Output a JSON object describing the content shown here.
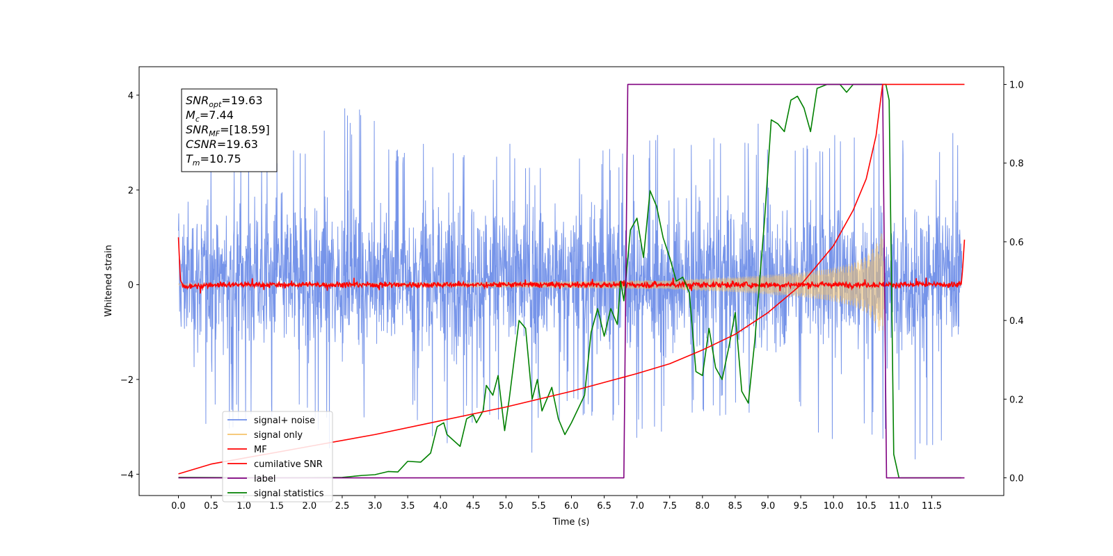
{
  "chart_data": {
    "type": "line",
    "xlabel": "Time (s)",
    "ylabel": "Whitened strain",
    "xlim": [
      -0.6,
      12.6
    ],
    "ylim_left": [
      -4.45,
      4.6
    ],
    "ylim_right": [
      -0.045,
      1.045
    ],
    "x_ticks": [
      0.0,
      0.5,
      1.0,
      1.5,
      2.0,
      2.5,
      3.0,
      3.5,
      4.0,
      4.5,
      5.0,
      5.5,
      6.0,
      6.5,
      7.0,
      7.5,
      8.0,
      8.5,
      9.0,
      9.5,
      10.0,
      10.5,
      11.0,
      11.5
    ],
    "x_tick_labels": [
      "0.0",
      "0.5",
      "1.0",
      "1.5",
      "2.0",
      "2.5",
      "3.0",
      "3.5",
      "4.0",
      "4.5",
      "5.0",
      "5.5",
      "6.0",
      "6.5",
      "7.0",
      "7.5",
      "8.0",
      "8.5",
      "9.0",
      "9.5",
      "10.0",
      "10.5",
      "11.0",
      "11.5"
    ],
    "y_left_ticks": [
      -4,
      -2,
      0,
      2,
      4
    ],
    "y_left_tick_labels": [
      "−4",
      "−2",
      "0",
      "2",
      "4"
    ],
    "y_right_ticks": [
      0.0,
      0.2,
      0.4,
      0.6,
      0.8,
      1.0
    ],
    "y_right_tick_labels": [
      "0.0",
      "0.2",
      "0.4",
      "0.6",
      "0.8",
      "1.0"
    ],
    "grid": false,
    "legend_position": "lower-left",
    "annotation": [
      {
        "base": "SNR",
        "sub": "opt",
        "value": "=19.63"
      },
      {
        "base": "M",
        "sub": "c",
        "value": "=7.44"
      },
      {
        "base": "SNR",
        "sub": "MF",
        "value": "=[18.59]"
      },
      {
        "base": "CSNR",
        "sub": "",
        "value": "=19.63"
      },
      {
        "base": "T",
        "sub": "m",
        "value": "=10.75"
      }
    ],
    "series": [
      {
        "name": "signal+ noise",
        "axis": "left",
        "color": "#6f8ee8",
        "envelope_upper": [
          [
            0.0,
            2.3
          ],
          [
            0.3,
            2.6
          ],
          [
            0.7,
            3.2
          ],
          [
            1.2,
            2.9
          ],
          [
            1.7,
            3.1
          ],
          [
            2.2,
            3.3
          ],
          [
            2.8,
            4.15
          ],
          [
            3.3,
            2.9
          ],
          [
            3.9,
            3.1
          ],
          [
            4.4,
            2.8
          ],
          [
            5.0,
            3.0
          ],
          [
            5.6,
            2.8
          ],
          [
            6.2,
            3.1
          ],
          [
            6.8,
            2.9
          ],
          [
            7.3,
            3.2
          ],
          [
            7.8,
            3.0
          ],
          [
            8.2,
            3.2
          ],
          [
            8.7,
            3.5
          ],
          [
            9.3,
            3.1
          ],
          [
            9.8,
            3.2
          ],
          [
            10.3,
            3.3
          ],
          [
            10.6,
            3.6
          ],
          [
            10.9,
            3.2
          ],
          [
            11.4,
            2.9
          ],
          [
            11.95,
            3.3
          ]
        ],
        "envelope_lower": [
          [
            0.0,
            -2.1
          ],
          [
            0.3,
            -3.0
          ],
          [
            0.7,
            -3.1
          ],
          [
            1.2,
            -2.8
          ],
          [
            1.7,
            -3.1
          ],
          [
            2.2,
            -3.3
          ],
          [
            2.6,
            -3.9
          ],
          [
            3.0,
            -2.9
          ],
          [
            3.6,
            -2.8
          ],
          [
            4.0,
            -3.9
          ],
          [
            4.5,
            -2.9
          ],
          [
            5.0,
            -3.0
          ],
          [
            5.4,
            -3.6
          ],
          [
            6.0,
            -2.9
          ],
          [
            6.6,
            -3.1
          ],
          [
            7.1,
            -3.4
          ],
          [
            7.6,
            -3.0
          ],
          [
            8.1,
            -2.8
          ],
          [
            8.6,
            -3.0
          ],
          [
            9.1,
            -2.9
          ],
          [
            9.5,
            -2.8
          ],
          [
            9.9,
            -3.9
          ],
          [
            10.4,
            -3.0
          ],
          [
            10.9,
            -3.5
          ],
          [
            11.4,
            -3.8
          ],
          [
            11.95,
            -3.0
          ]
        ]
      },
      {
        "name": "signal only",
        "axis": "left",
        "color": "#f5c26a",
        "envelope": [
          [
            0.0,
            0.02
          ],
          [
            3.0,
            0.03
          ],
          [
            6.0,
            0.07
          ],
          [
            7.5,
            0.1
          ],
          [
            8.5,
            0.16
          ],
          [
            9.5,
            0.26
          ],
          [
            10.0,
            0.36
          ],
          [
            10.3,
            0.46
          ],
          [
            10.5,
            0.6
          ],
          [
            10.65,
            0.85
          ],
          [
            10.75,
            1.15
          ],
          [
            10.78,
            0.0
          ]
        ]
      },
      {
        "name": "MF",
        "axis": "left",
        "color": "#ff0000",
        "points": [
          [
            0.0,
            1.0
          ],
          [
            0.03,
            0.1
          ],
          [
            0.08,
            -0.05
          ],
          [
            0.5,
            0.0
          ],
          [
            11.95,
            0.0
          ],
          [
            11.97,
            0.3
          ],
          [
            12.0,
            0.95
          ]
        ],
        "noise_amplitude": 0.06
      },
      {
        "name": "cumilative SNR",
        "axis": "right",
        "color": "#ff0000",
        "points": [
          [
            0.0,
            0.01
          ],
          [
            0.5,
            0.035
          ],
          [
            1.0,
            0.05
          ],
          [
            2.0,
            0.08
          ],
          [
            3.0,
            0.11
          ],
          [
            4.0,
            0.145
          ],
          [
            5.0,
            0.18
          ],
          [
            6.0,
            0.22
          ],
          [
            7.0,
            0.265
          ],
          [
            7.5,
            0.29
          ],
          [
            8.0,
            0.325
          ],
          [
            8.5,
            0.365
          ],
          [
            9.0,
            0.42
          ],
          [
            9.5,
            0.49
          ],
          [
            10.0,
            0.59
          ],
          [
            10.3,
            0.68
          ],
          [
            10.5,
            0.76
          ],
          [
            10.65,
            0.87
          ],
          [
            10.75,
            1.0
          ],
          [
            12.0,
            1.0
          ]
        ]
      },
      {
        "name": "label",
        "axis": "right",
        "color": "#800080",
        "points": [
          [
            0.0,
            0.0
          ],
          [
            6.8,
            0.0
          ],
          [
            6.86,
            1.0
          ],
          [
            10.75,
            1.0
          ],
          [
            10.81,
            0.0
          ],
          [
            12.0,
            0.0
          ]
        ]
      },
      {
        "name": "signal statistics",
        "axis": "right",
        "color": "#008000",
        "points": [
          [
            0.0,
            0.001
          ],
          [
            1.5,
            0.0
          ],
          [
            2.5,
            0.001
          ],
          [
            2.8,
            0.006
          ],
          [
            3.0,
            0.008
          ],
          [
            3.2,
            0.016
          ],
          [
            3.35,
            0.015
          ],
          [
            3.5,
            0.042
          ],
          [
            3.7,
            0.04
          ],
          [
            3.85,
            0.063
          ],
          [
            3.95,
            0.13
          ],
          [
            4.05,
            0.14
          ],
          [
            4.1,
            0.11
          ],
          [
            4.3,
            0.08
          ],
          [
            4.4,
            0.15
          ],
          [
            4.5,
            0.16
          ],
          [
            4.55,
            0.14
          ],
          [
            4.65,
            0.17
          ],
          [
            4.7,
            0.235
          ],
          [
            4.8,
            0.21
          ],
          [
            4.88,
            0.26
          ],
          [
            4.98,
            0.12
          ],
          [
            5.05,
            0.2
          ],
          [
            5.2,
            0.4
          ],
          [
            5.3,
            0.38
          ],
          [
            5.4,
            0.2
          ],
          [
            5.48,
            0.25
          ],
          [
            5.55,
            0.17
          ],
          [
            5.7,
            0.23
          ],
          [
            5.8,
            0.15
          ],
          [
            5.9,
            0.11
          ],
          [
            6.0,
            0.14
          ],
          [
            6.2,
            0.21
          ],
          [
            6.3,
            0.37
          ],
          [
            6.4,
            0.43
          ],
          [
            6.5,
            0.36
          ],
          [
            6.6,
            0.43
          ],
          [
            6.7,
            0.39
          ],
          [
            6.75,
            0.5
          ],
          [
            6.8,
            0.45
          ],
          [
            6.9,
            0.63
          ],
          [
            7.0,
            0.66
          ],
          [
            7.1,
            0.56
          ],
          [
            7.2,
            0.73
          ],
          [
            7.3,
            0.69
          ],
          [
            7.4,
            0.61
          ],
          [
            7.5,
            0.56
          ],
          [
            7.6,
            0.5
          ],
          [
            7.7,
            0.51
          ],
          [
            7.8,
            0.47
          ],
          [
            7.9,
            0.27
          ],
          [
            8.0,
            0.26
          ],
          [
            8.1,
            0.38
          ],
          [
            8.2,
            0.28
          ],
          [
            8.3,
            0.25
          ],
          [
            8.4,
            0.33
          ],
          [
            8.5,
            0.42
          ],
          [
            8.6,
            0.22
          ],
          [
            8.7,
            0.19
          ],
          [
            8.8,
            0.35
          ],
          [
            8.95,
            0.66
          ],
          [
            9.05,
            0.91
          ],
          [
            9.15,
            0.9
          ],
          [
            9.25,
            0.88
          ],
          [
            9.35,
            0.96
          ],
          [
            9.45,
            0.97
          ],
          [
            9.55,
            0.94
          ],
          [
            9.65,
            0.88
          ],
          [
            9.75,
            0.99
          ],
          [
            9.9,
            1.0
          ],
          [
            10.1,
            1.0
          ],
          [
            10.2,
            0.98
          ],
          [
            10.3,
            1.0
          ],
          [
            10.6,
            1.0
          ],
          [
            10.8,
            1.0
          ],
          [
            10.85,
            0.96
          ],
          [
            10.92,
            0.06
          ],
          [
            11.0,
            0.0
          ],
          [
            11.95,
            0.0
          ]
        ]
      }
    ]
  }
}
